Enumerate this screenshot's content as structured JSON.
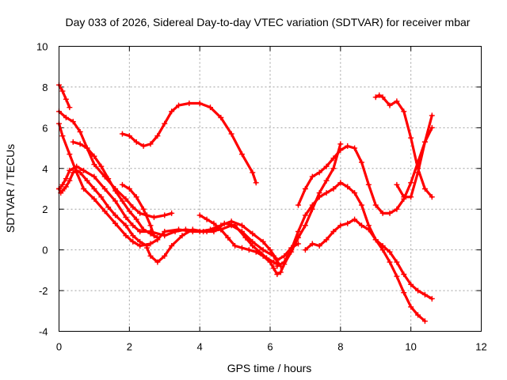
{
  "chart_data": {
    "type": "scatter",
    "title": "Day 033 of 2026, Sidereal Day-to-day VTEC variation (SDTVAR) for receiver mbar",
    "xlabel": "GPS time / hours",
    "ylabel": "SDTVAR / TECUs",
    "xlim": [
      0,
      12
    ],
    "ylim": [
      -4,
      10
    ],
    "xticks": [
      0,
      2,
      4,
      6,
      8,
      10,
      12
    ],
    "yticks": [
      -4,
      -2,
      0,
      2,
      4,
      6,
      8,
      10
    ],
    "grid": true,
    "marker": "plus",
    "color": "#ff0000",
    "series": [
      {
        "x": [
          0.0,
          0.1,
          0.2,
          0.3,
          0.5,
          0.7,
          1.0,
          1.3,
          1.6,
          1.9,
          2.1,
          2.3,
          2.6,
          3.0,
          3.3,
          3.6,
          4.0,
          4.3,
          4.6,
          4.9,
          5.2,
          5.5,
          5.8,
          6.0,
          6.2,
          6.4,
          6.6,
          6.8
        ],
        "y": [
          3.0,
          3.2,
          3.5,
          3.9,
          4.1,
          3.9,
          3.6,
          3.0,
          2.4,
          1.6,
          1.2,
          0.9,
          0.9,
          0.7,
          0.9,
          1.0,
          0.9,
          1.0,
          1.2,
          1.4,
          1.2,
          0.8,
          0.4,
          0.0,
          -0.5,
          -0.3,
          0.1,
          0.3
        ]
      },
      {
        "x": [
          0.0,
          0.1,
          0.3,
          0.5,
          0.7,
          1.0,
          1.3,
          1.6,
          1.9,
          2.1,
          2.3,
          2.6,
          2.8,
          3.0,
          3.4,
          3.8,
          4.2,
          4.6,
          4.9,
          5.2,
          5.5,
          5.8,
          6.1,
          6.3
        ],
        "y": [
          6.2,
          5.6,
          4.7,
          3.8,
          3.0,
          2.5,
          1.9,
          1.3,
          0.7,
          0.4,
          0.2,
          0.3,
          0.5,
          0.9,
          1.0,
          0.9,
          0.9,
          1.0,
          1.2,
          0.9,
          0.4,
          0.0,
          -0.3,
          -0.8
        ]
      },
      {
        "x": [
          0.0,
          0.2,
          0.4,
          0.6,
          0.8,
          1.0,
          1.3,
          1.6,
          1.9,
          2.1,
          2.3,
          2.5,
          2.7,
          3.0,
          3.2
        ],
        "y": [
          6.8,
          6.5,
          6.3,
          5.8,
          5.0,
          4.2,
          3.6,
          3.0,
          2.5,
          2.1,
          1.8,
          1.7,
          1.6,
          1.7,
          1.8
        ]
      },
      {
        "x": [
          0.0,
          0.05,
          0.1,
          0.2,
          0.3,
          0.4,
          0.5,
          0.6,
          0.8,
          1.0,
          1.2,
          1.4,
          1.6,
          1.9,
          2.1,
          2.3,
          2.5
        ],
        "y": [
          3.0,
          2.8,
          2.9,
          3.1,
          3.4,
          3.8,
          3.9,
          3.8,
          3.4,
          3.0,
          2.6,
          2.1,
          1.7,
          1.2,
          0.7,
          0.4,
          0.2
        ]
      },
      {
        "x": [
          0.0,
          0.1,
          0.2,
          0.3
        ],
        "y": [
          8.1,
          7.8,
          7.4,
          7.0
        ]
      },
      {
        "x": [
          0.4,
          0.6,
          0.8,
          1.0,
          1.2,
          1.4,
          1.6,
          1.8,
          2.0,
          2.2,
          2.4,
          2.6,
          2.8
        ],
        "y": [
          5.3,
          5.2,
          5.0,
          4.6,
          4.1,
          3.5,
          2.9,
          2.4,
          1.9,
          1.5,
          1.0,
          0.8,
          0.6
        ]
      },
      {
        "x": [
          1.8,
          2.0,
          2.2,
          2.4,
          2.6,
          2.8,
          3.0,
          3.2,
          3.4,
          3.7,
          4.0,
          4.3,
          4.6,
          4.9,
          5.2,
          5.5,
          5.6
        ],
        "y": [
          5.7,
          5.6,
          5.3,
          5.1,
          5.2,
          5.6,
          6.2,
          6.8,
          7.1,
          7.2,
          7.2,
          7.0,
          6.5,
          5.7,
          4.7,
          3.8,
          3.3
        ]
      },
      {
        "x": [
          1.8,
          2.0,
          2.2,
          2.4,
          2.6,
          2.7
        ],
        "y": [
          3.2,
          3.0,
          2.6,
          2.0,
          1.2,
          0.7
        ]
      },
      {
        "x": [
          2.5,
          2.6,
          2.8,
          3.0,
          3.2,
          3.5,
          3.8,
          4.1,
          4.4,
          4.7,
          5.0,
          5.3,
          5.5,
          5.7,
          5.9,
          6.1,
          6.2
        ],
        "y": [
          0.1,
          -0.3,
          -0.6,
          -0.3,
          0.2,
          0.7,
          1.0,
          0.9,
          0.9,
          1.3,
          1.2,
          0.6,
          0.2,
          -0.1,
          -0.4,
          -0.6,
          -0.7
        ]
      },
      {
        "x": [
          4.0,
          4.2,
          4.4,
          4.6,
          4.8,
          5.0,
          5.2,
          5.4,
          5.6,
          5.8,
          6.0,
          6.1,
          6.2,
          6.3,
          6.4,
          6.6,
          6.8,
          7.0,
          7.2,
          7.4,
          7.6,
          7.8,
          8.0
        ],
        "y": [
          1.7,
          1.5,
          1.3,
          1.0,
          0.6,
          0.2,
          0.1,
          0.0,
          -0.1,
          -0.3,
          -0.6,
          -0.9,
          -1.2,
          -1.1,
          -0.7,
          -0.1,
          0.6,
          1.2,
          2.0,
          2.8,
          3.4,
          4.0,
          5.2
        ]
      },
      {
        "x": [
          6.2,
          6.4,
          6.6,
          6.8,
          7.0,
          7.2,
          7.4,
          7.6,
          7.8,
          8.0,
          8.2,
          8.4,
          8.6,
          8.8,
          9.0,
          9.2,
          9.4,
          9.6,
          9.8,
          10.0,
          10.2,
          10.4
        ],
        "y": [
          -0.8,
          -0.6,
          0.0,
          0.9,
          1.7,
          2.2,
          2.6,
          2.8,
          3.0,
          3.3,
          3.1,
          2.8,
          2.2,
          1.2,
          0.5,
          0.0,
          -0.6,
          -1.3,
          -2.1,
          -2.8,
          -3.2,
          -3.5
        ]
      },
      {
        "x": [
          7.0,
          7.2,
          7.4,
          7.6,
          7.8,
          8.0,
          8.2,
          8.4,
          8.6,
          8.8,
          9.0,
          9.2,
          9.4,
          9.6,
          9.8,
          10.0,
          10.2,
          10.4,
          10.6
        ],
        "y": [
          0.0,
          0.3,
          0.2,
          0.5,
          0.9,
          1.2,
          1.3,
          1.5,
          1.2,
          1.0,
          0.5,
          0.2,
          -0.1,
          -0.6,
          -1.2,
          -1.7,
          -2.0,
          -2.2,
          -2.4
        ]
      },
      {
        "x": [
          6.8,
          7.0,
          7.2,
          7.4,
          7.6,
          7.8,
          8.0,
          8.2,
          8.4,
          8.6,
          8.8,
          9.0,
          9.2,
          9.4,
          9.6,
          9.8,
          10.0,
          10.2,
          10.4,
          10.6
        ],
        "y": [
          2.2,
          3.0,
          3.6,
          3.8,
          4.1,
          4.5,
          4.9,
          5.1,
          5.0,
          4.3,
          3.2,
          2.2,
          1.8,
          1.8,
          2.0,
          2.5,
          3.3,
          4.3,
          5.3,
          6.0
        ]
      },
      {
        "x": [
          9.0,
          9.1,
          9.2,
          9.4,
          9.6,
          9.8,
          10.0,
          10.2,
          10.4,
          10.6
        ],
        "y": [
          7.5,
          7.6,
          7.5,
          7.1,
          7.3,
          6.8,
          5.5,
          4.0,
          3.0,
          2.6
        ]
      },
      {
        "x": [
          9.6,
          9.8,
          10.0,
          10.2,
          10.4,
          10.6
        ],
        "y": [
          3.2,
          2.6,
          2.6,
          3.8,
          5.3,
          6.6
        ]
      }
    ]
  }
}
